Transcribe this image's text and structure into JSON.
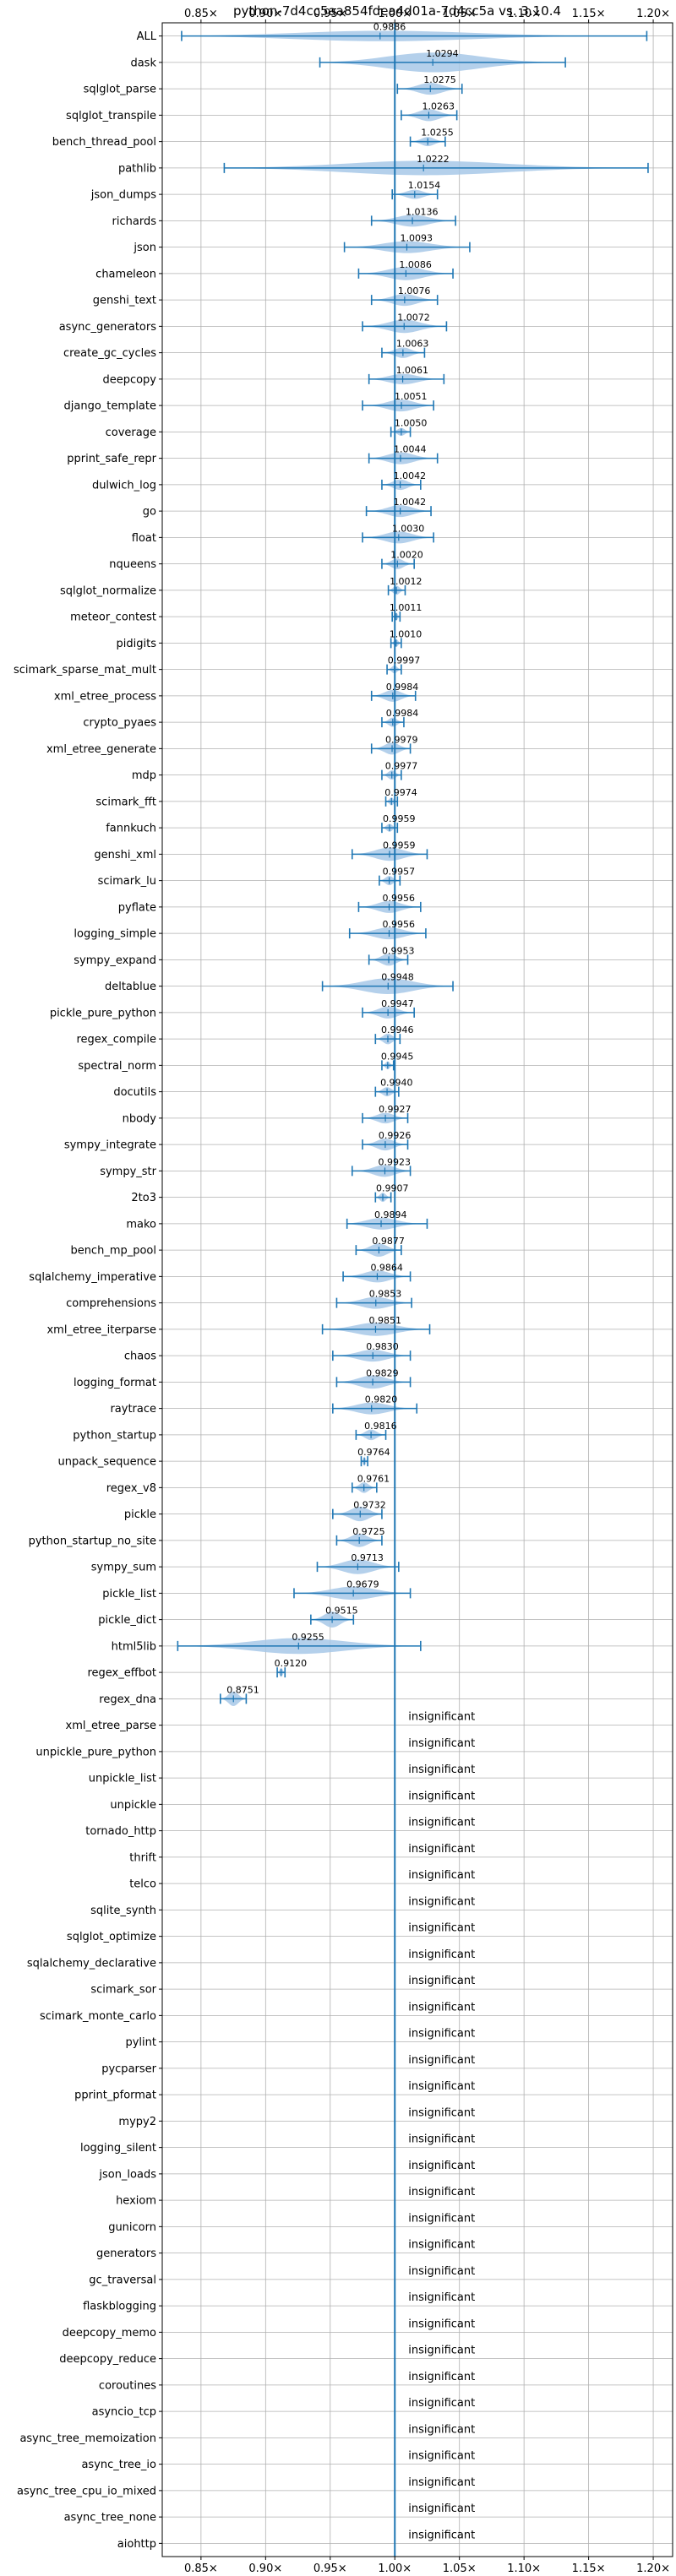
{
  "chart_data": {
    "type": "violin",
    "title": "python-7d4cc5aa854fdea4d01a-7d4cc5a vs. 3.10.4",
    "xlabel": "",
    "ylabel": "",
    "xlim": [
      0.82,
      1.215
    ],
    "xticks": [
      0.85,
      0.9,
      0.95,
      1.0,
      1.05,
      1.1,
      1.15,
      1.2
    ],
    "xtick_labels": [
      "0.85×",
      "0.90×",
      "0.95×",
      "1.00×",
      "1.05×",
      "1.10×",
      "1.15×",
      "1.20×"
    ],
    "reference_line": 1.0,
    "grid": true,
    "insignificant_label": "insignificant",
    "series": [
      {
        "name": "ALL",
        "label": "0.9886",
        "mean": 0.9886,
        "min": 0.835,
        "max": 1.195,
        "width": 0.4
      },
      {
        "name": "dask",
        "label": "1.0294",
        "mean": 1.0294,
        "min": 0.942,
        "max": 1.132,
        "width": 0.75
      },
      {
        "name": "sqlglot_parse",
        "label": "1.0275",
        "mean": 1.0275,
        "min": 1.002,
        "max": 1.052,
        "width": 0.45
      },
      {
        "name": "sqlglot_transpile",
        "label": "1.0263",
        "mean": 1.0263,
        "min": 1.005,
        "max": 1.048,
        "width": 0.45
      },
      {
        "name": "bench_thread_pool",
        "label": "1.0255",
        "mean": 1.0255,
        "min": 1.012,
        "max": 1.039,
        "width": 0.35
      },
      {
        "name": "pathlib",
        "label": "1.0222",
        "mean": 1.0222,
        "min": 0.868,
        "max": 1.196,
        "width": 0.55
      },
      {
        "name": "json_dumps",
        "label": "1.0154",
        "mean": 1.0154,
        "min": 0.998,
        "max": 1.033,
        "width": 0.35
      },
      {
        "name": "richards",
        "label": "1.0136",
        "mean": 1.0136,
        "min": 0.982,
        "max": 1.047,
        "width": 0.45
      },
      {
        "name": "json",
        "label": "1.0093",
        "mean": 1.0093,
        "min": 0.961,
        "max": 1.058,
        "width": 0.45
      },
      {
        "name": "chameleon",
        "label": "1.0086",
        "mean": 1.0086,
        "min": 0.972,
        "max": 1.045,
        "width": 0.5
      },
      {
        "name": "genshi_text",
        "label": "1.0076",
        "mean": 1.0076,
        "min": 0.982,
        "max": 1.033,
        "width": 0.45
      },
      {
        "name": "async_generators",
        "label": "1.0072",
        "mean": 1.0072,
        "min": 0.975,
        "max": 1.04,
        "width": 0.5
      },
      {
        "name": "create_gc_cycles",
        "label": "1.0063",
        "mean": 1.0063,
        "min": 0.99,
        "max": 1.023,
        "width": 0.4
      },
      {
        "name": "deepcopy",
        "label": "1.0061",
        "mean": 1.0061,
        "min": 0.98,
        "max": 1.038,
        "width": 0.4
      },
      {
        "name": "django_template",
        "label": "1.0051",
        "mean": 1.0051,
        "min": 0.975,
        "max": 1.03,
        "width": 0.45
      },
      {
        "name": "coverage",
        "label": "1.0050",
        "mean": 1.005,
        "min": 0.997,
        "max": 1.012,
        "width": 0.3
      },
      {
        "name": "pprint_safe_repr",
        "label": "1.0044",
        "mean": 1.0044,
        "min": 0.98,
        "max": 1.033,
        "width": 0.45
      },
      {
        "name": "dulwich_log",
        "label": "1.0042",
        "mean": 1.0042,
        "min": 0.99,
        "max": 1.02,
        "width": 0.4
      },
      {
        "name": "go",
        "label": "1.0042",
        "mean": 1.0042,
        "min": 0.978,
        "max": 1.028,
        "width": 0.45
      },
      {
        "name": "float",
        "label": "1.0030",
        "mean": 1.003,
        "min": 0.975,
        "max": 1.03,
        "width": 0.45
      },
      {
        "name": "nqueens",
        "label": "1.0020",
        "mean": 1.002,
        "min": 0.99,
        "max": 1.015,
        "width": 0.4
      },
      {
        "name": "sqlglot_normalize",
        "label": "1.0012",
        "mean": 1.0012,
        "min": 0.995,
        "max": 1.008,
        "width": 0.35
      },
      {
        "name": "meteor_contest",
        "label": "1.0011",
        "mean": 1.0011,
        "min": 0.998,
        "max": 1.004,
        "width": 0.3
      },
      {
        "name": "pidigits",
        "label": "1.0010",
        "mean": 1.001,
        "min": 0.997,
        "max": 1.005,
        "width": 0.3
      },
      {
        "name": "scimark_sparse_mat_mult",
        "label": "0.9997",
        "mean": 0.9997,
        "min": 0.994,
        "max": 1.005,
        "width": 0.3
      },
      {
        "name": "xml_etree_process",
        "label": "0.9984",
        "mean": 0.9984,
        "min": 0.982,
        "max": 1.016,
        "width": 0.45
      },
      {
        "name": "crypto_pyaes",
        "label": "0.9984",
        "mean": 0.9984,
        "min": 0.99,
        "max": 1.007,
        "width": 0.35
      },
      {
        "name": "xml_etree_generate",
        "label": "0.9979",
        "mean": 0.9979,
        "min": 0.982,
        "max": 1.012,
        "width": 0.45
      },
      {
        "name": "mdp",
        "label": "0.9977",
        "mean": 0.9977,
        "min": 0.99,
        "max": 1.005,
        "width": 0.35
      },
      {
        "name": "scimark_fft",
        "label": "0.9974",
        "mean": 0.9974,
        "min": 0.993,
        "max": 1.002,
        "width": 0.3
      },
      {
        "name": "fannkuch",
        "label": "0.9959",
        "mean": 0.9959,
        "min": 0.99,
        "max": 1.002,
        "width": 0.3
      },
      {
        "name": "genshi_xml",
        "label": "0.9959",
        "mean": 0.9959,
        "min": 0.967,
        "max": 1.025,
        "width": 0.5
      },
      {
        "name": "scimark_lu",
        "label": "0.9957",
        "mean": 0.9957,
        "min": 0.988,
        "max": 1.004,
        "width": 0.35
      },
      {
        "name": "pyflate",
        "label": "0.9956",
        "mean": 0.9956,
        "min": 0.972,
        "max": 1.02,
        "width": 0.45
      },
      {
        "name": "logging_simple",
        "label": "0.9956",
        "mean": 0.9956,
        "min": 0.965,
        "max": 1.024,
        "width": 0.45
      },
      {
        "name": "sympy_expand",
        "label": "0.9953",
        "mean": 0.9953,
        "min": 0.98,
        "max": 1.01,
        "width": 0.45
      },
      {
        "name": "deltablue",
        "label": "0.9948",
        "mean": 0.9948,
        "min": 0.944,
        "max": 1.045,
        "width": 0.6
      },
      {
        "name": "pickle_pure_python",
        "label": "0.9947",
        "mean": 0.9947,
        "min": 0.975,
        "max": 1.015,
        "width": 0.45
      },
      {
        "name": "regex_compile",
        "label": "0.9946",
        "mean": 0.9946,
        "min": 0.985,
        "max": 1.004,
        "width": 0.4
      },
      {
        "name": "spectral_norm",
        "label": "0.9945",
        "mean": 0.9945,
        "min": 0.99,
        "max": 0.999,
        "width": 0.3
      },
      {
        "name": "docutils",
        "label": "0.9940",
        "mean": 0.994,
        "min": 0.985,
        "max": 1.003,
        "width": 0.35
      },
      {
        "name": "nbody",
        "label": "0.9927",
        "mean": 0.9927,
        "min": 0.975,
        "max": 1.01,
        "width": 0.4
      },
      {
        "name": "sympy_integrate",
        "label": "0.9926",
        "mean": 0.9926,
        "min": 0.975,
        "max": 1.01,
        "width": 0.45
      },
      {
        "name": "sympy_str",
        "label": "0.9923",
        "mean": 0.9923,
        "min": 0.967,
        "max": 1.012,
        "width": 0.45
      },
      {
        "name": "2to3",
        "label": "0.9907",
        "mean": 0.9907,
        "min": 0.985,
        "max": 0.997,
        "width": 0.35
      },
      {
        "name": "mako",
        "label": "0.9894",
        "mean": 0.9894,
        "min": 0.963,
        "max": 1.025,
        "width": 0.45
      },
      {
        "name": "bench_mp_pool",
        "label": "0.9877",
        "mean": 0.9877,
        "min": 0.97,
        "max": 1.005,
        "width": 0.5
      },
      {
        "name": "sqlalchemy_imperative",
        "label": "0.9864",
        "mean": 0.9864,
        "min": 0.96,
        "max": 1.012,
        "width": 0.45
      },
      {
        "name": "comprehensions",
        "label": "0.9853",
        "mean": 0.9853,
        "min": 0.955,
        "max": 1.013,
        "width": 0.45
      },
      {
        "name": "xml_etree_iterparse",
        "label": "0.9851",
        "mean": 0.9851,
        "min": 0.944,
        "max": 1.027,
        "width": 0.5
      },
      {
        "name": "chaos",
        "label": "0.9830",
        "mean": 0.983,
        "min": 0.952,
        "max": 1.012,
        "width": 0.45
      },
      {
        "name": "logging_format",
        "label": "0.9829",
        "mean": 0.9829,
        "min": 0.955,
        "max": 1.012,
        "width": 0.5
      },
      {
        "name": "raytrace",
        "label": "0.9820",
        "mean": 0.982,
        "min": 0.952,
        "max": 1.017,
        "width": 0.45
      },
      {
        "name": "python_startup",
        "label": "0.9816",
        "mean": 0.9816,
        "min": 0.97,
        "max": 0.993,
        "width": 0.4
      },
      {
        "name": "unpack_sequence",
        "label": "0.9764",
        "mean": 0.9764,
        "min": 0.974,
        "max": 0.979,
        "width": 0.35
      },
      {
        "name": "regex_v8",
        "label": "0.9761",
        "mean": 0.9761,
        "min": 0.967,
        "max": 0.986,
        "width": 0.4
      },
      {
        "name": "pickle",
        "label": "0.9732",
        "mean": 0.9732,
        "min": 0.952,
        "max": 0.99,
        "width": 0.55
      },
      {
        "name": "python_startup_no_site",
        "label": "0.9725",
        "mean": 0.9725,
        "min": 0.955,
        "max": 0.99,
        "width": 0.5
      },
      {
        "name": "sympy_sum",
        "label": "0.9713",
        "mean": 0.9713,
        "min": 0.94,
        "max": 1.003,
        "width": 0.55
      },
      {
        "name": "pickle_list",
        "label": "0.9679",
        "mean": 0.9679,
        "min": 0.922,
        "max": 1.012,
        "width": 0.5
      },
      {
        "name": "pickle_dict",
        "label": "0.9515",
        "mean": 0.9515,
        "min": 0.935,
        "max": 0.968,
        "width": 0.6
      },
      {
        "name": "html5lib",
        "label": "0.9255",
        "mean": 0.9255,
        "min": 0.832,
        "max": 1.02,
        "width": 0.6
      },
      {
        "name": "regex_effbot",
        "label": "0.9120",
        "mean": 0.912,
        "min": 0.909,
        "max": 0.915,
        "width": 0.35
      },
      {
        "name": "regex_dna",
        "label": "0.8751",
        "mean": 0.8751,
        "min": 0.865,
        "max": 0.885,
        "width": 0.55
      },
      {
        "name": "xml_etree_parse",
        "label": "insignificant",
        "insignificant": true
      },
      {
        "name": "unpickle_pure_python",
        "label": "insignificant",
        "insignificant": true
      },
      {
        "name": "unpickle_list",
        "label": "insignificant",
        "insignificant": true
      },
      {
        "name": "unpickle",
        "label": "insignificant",
        "insignificant": true
      },
      {
        "name": "tornado_http",
        "label": "insignificant",
        "insignificant": true
      },
      {
        "name": "thrift",
        "label": "insignificant",
        "insignificant": true
      },
      {
        "name": "telco",
        "label": "insignificant",
        "insignificant": true
      },
      {
        "name": "sqlite_synth",
        "label": "insignificant",
        "insignificant": true
      },
      {
        "name": "sqlglot_optimize",
        "label": "insignificant",
        "insignificant": true
      },
      {
        "name": "sqlalchemy_declarative",
        "label": "insignificant",
        "insignificant": true
      },
      {
        "name": "scimark_sor",
        "label": "insignificant",
        "insignificant": true
      },
      {
        "name": "scimark_monte_carlo",
        "label": "insignificant",
        "insignificant": true
      },
      {
        "name": "pylint",
        "label": "insignificant",
        "insignificant": true
      },
      {
        "name": "pycparser",
        "label": "insignificant",
        "insignificant": true
      },
      {
        "name": "pprint_pformat",
        "label": "insignificant",
        "insignificant": true
      },
      {
        "name": "mypy2",
        "label": "insignificant",
        "insignificant": true
      },
      {
        "name": "logging_silent",
        "label": "insignificant",
        "insignificant": true
      },
      {
        "name": "json_loads",
        "label": "insignificant",
        "insignificant": true
      },
      {
        "name": "hexiom",
        "label": "insignificant",
        "insignificant": true
      },
      {
        "name": "gunicorn",
        "label": "insignificant",
        "insignificant": true
      },
      {
        "name": "generators",
        "label": "insignificant",
        "insignificant": true
      },
      {
        "name": "gc_traversal",
        "label": "insignificant",
        "insignificant": true
      },
      {
        "name": "flaskblogging",
        "label": "insignificant",
        "insignificant": true
      },
      {
        "name": "deepcopy_memo",
        "label": "insignificant",
        "insignificant": true
      },
      {
        "name": "deepcopy_reduce",
        "label": "insignificant",
        "insignificant": true
      },
      {
        "name": "coroutines",
        "label": "insignificant",
        "insignificant": true
      },
      {
        "name": "asyncio_tcp",
        "label": "insignificant",
        "insignificant": true
      },
      {
        "name": "async_tree_memoization",
        "label": "insignificant",
        "insignificant": true
      },
      {
        "name": "async_tree_io",
        "label": "insignificant",
        "insignificant": true
      },
      {
        "name": "async_tree_cpu_io_mixed",
        "label": "insignificant",
        "insignificant": true
      },
      {
        "name": "async_tree_none",
        "label": "insignificant",
        "insignificant": true
      },
      {
        "name": "aiohttp",
        "label": "insignificant",
        "insignificant": true
      }
    ],
    "colors": {
      "violin": "#a7c8e8",
      "whisker": "#1f77b4",
      "grid": "#b0b0b0",
      "reference": "#1f77b4",
      "axis": "#000000"
    }
  }
}
